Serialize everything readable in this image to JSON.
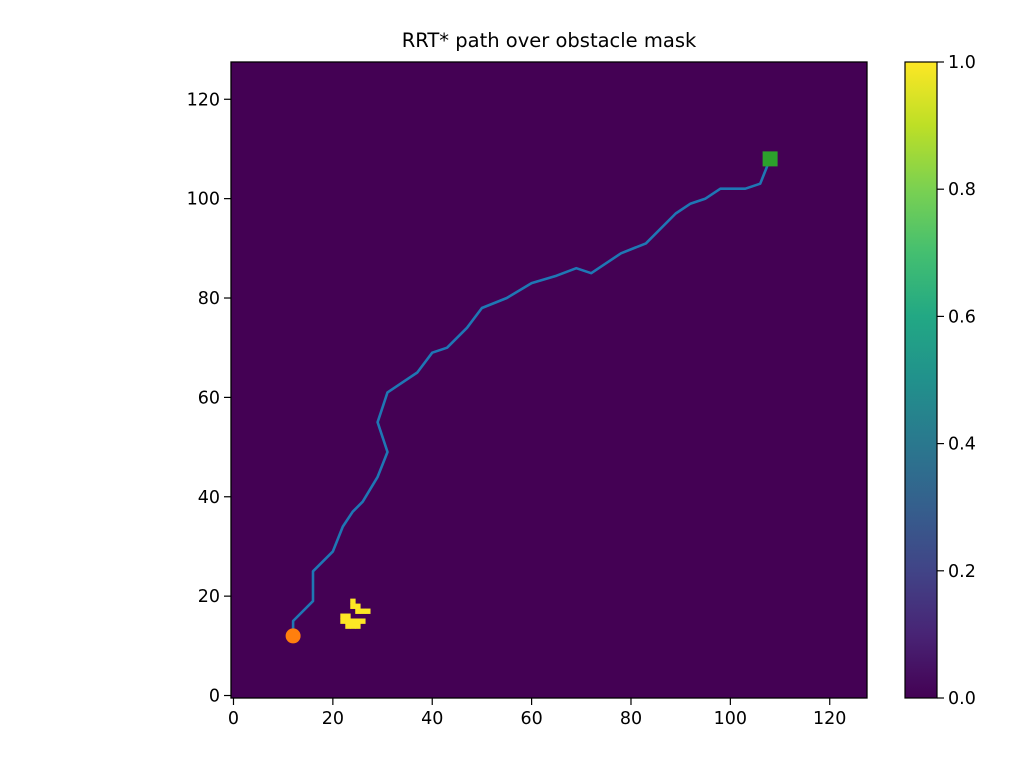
{
  "chart_data": {
    "type": "heatmap",
    "title": "RRT* path over obstacle mask",
    "xlabel": "",
    "ylabel": "",
    "xlim": [
      -0.5,
      127.5
    ],
    "ylim": [
      -0.5,
      127.5
    ],
    "x_ticks": [
      0,
      20,
      40,
      60,
      80,
      100,
      120
    ],
    "y_ticks": [
      0,
      20,
      40,
      60,
      80,
      100,
      120
    ],
    "grid": false,
    "legend": "none",
    "colormap": "viridis",
    "background_value": 0,
    "obstacle_value": 1,
    "colorbar": {
      "position": "right",
      "range": [
        0.0,
        1.0
      ],
      "ticks": [
        "0.0",
        "0.2",
        "0.4",
        "0.6",
        "0.8",
        "1.0"
      ]
    },
    "obstacle_cells": [
      [
        24,
        19
      ],
      [
        24,
        18
      ],
      [
        25,
        18
      ],
      [
        25,
        17
      ],
      [
        26,
        17
      ],
      [
        27,
        17
      ],
      [
        22,
        16
      ],
      [
        23,
        16
      ],
      [
        22,
        15
      ],
      [
        23,
        15
      ],
      [
        24,
        15
      ],
      [
        25,
        15
      ],
      [
        26,
        15
      ],
      [
        23,
        14
      ],
      [
        24,
        14
      ],
      [
        25,
        14
      ]
    ],
    "path": {
      "color": "#1f77b4",
      "points": [
        [
          12,
          12
        ],
        [
          12,
          15
        ],
        [
          16,
          19
        ],
        [
          16,
          25
        ],
        [
          20,
          29
        ],
        [
          22,
          34
        ],
        [
          24,
          37
        ],
        [
          26,
          39
        ],
        [
          29,
          44
        ],
        [
          31,
          49
        ],
        [
          29,
          55
        ],
        [
          31,
          61
        ],
        [
          37,
          65
        ],
        [
          40,
          69
        ],
        [
          43,
          70
        ],
        [
          47,
          74
        ],
        [
          50,
          78
        ],
        [
          55,
          80
        ],
        [
          60,
          83
        ],
        [
          65,
          84.5
        ],
        [
          69,
          86
        ],
        [
          72,
          85
        ],
        [
          78,
          89
        ],
        [
          83,
          91
        ],
        [
          89,
          97
        ],
        [
          92,
          99
        ],
        [
          95,
          100
        ],
        [
          98,
          102
        ],
        [
          103,
          102
        ],
        [
          106,
          103
        ],
        [
          108,
          108
        ]
      ]
    },
    "start": {
      "x": 12,
      "y": 12,
      "marker": "circle",
      "color": "#ff7f0e"
    },
    "goal": {
      "x": 108,
      "y": 108,
      "marker": "square",
      "color": "#2ca02c"
    },
    "colors": {
      "background": "#440154",
      "obstacle": "#fde725"
    }
  }
}
